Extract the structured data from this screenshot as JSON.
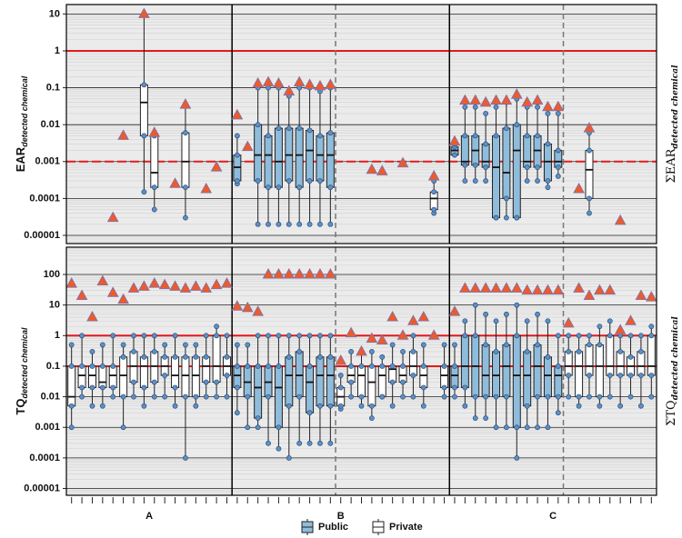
{
  "legend": [
    {
      "name": "Public",
      "color": "#8fbcdb"
    },
    {
      "name": "Private",
      "color": "#ffffff"
    }
  ],
  "x_groups": [
    {
      "name": "A",
      "public_sites": 0,
      "private_sites": 16
    },
    {
      "name": "B",
      "public_sites": 10,
      "private_sites": 11
    },
    {
      "name": "C",
      "public_sites": 11,
      "private_sites": 9
    }
  ],
  "chart_data": [
    {
      "type": "box",
      "log_scale": true,
      "y_label": "EAR",
      "y_label_sub": "detected chemical",
      "y2_label": "ΣEAR",
      "y2_label_sub": "detected chemical",
      "ylim": [
        6e-06,
        18
      ],
      "yticks": [
        1e-05,
        0.0001,
        0.001,
        0.01,
        0.1,
        1,
        10
      ],
      "thresholds": [
        {
          "value": 1,
          "style": "solid",
          "color": "#e41a1c"
        },
        {
          "value": 0.001,
          "style": "dashed",
          "color": "#e41a1c"
        }
      ],
      "boxes": [
        null,
        null,
        null,
        null,
        null,
        null,
        null,
        [
          0.00015,
          0.005,
          0.04,
          0.12,
          10
        ],
        [
          5e-05,
          0.0002,
          0.0005,
          0.005,
          0.006
        ],
        null,
        null,
        [
          3e-05,
          0.0002,
          0.001,
          0.006,
          0.035
        ],
        null,
        null,
        null,
        null,
        [
          0.00025,
          0.0003,
          0.0007,
          0.0015,
          0.005
        ],
        null,
        [
          2e-05,
          0.0003,
          0.0015,
          0.01,
          0.1
        ],
        [
          2e-05,
          0.0002,
          0.0015,
          0.005,
          0.1
        ],
        [
          2e-05,
          0.0002,
          0.001,
          0.008,
          0.1
        ],
        [
          2e-05,
          0.0003,
          0.0015,
          0.008,
          0.06
        ],
        [
          2e-05,
          0.0002,
          0.0015,
          0.008,
          0.1
        ],
        [
          2e-05,
          0.0003,
          0.002,
          0.007,
          0.1
        ],
        [
          2e-05,
          0.0003,
          0.0015,
          0.005,
          0.08
        ],
        [
          2e-05,
          0.0002,
          0.0015,
          0.006,
          0.1
        ],
        null,
        null,
        null,
        null,
        null,
        null,
        null,
        null,
        null,
        [
          4e-05,
          5e-05,
          0.0001,
          0.00015,
          0.0003
        ],
        null,
        [
          0.0015,
          0.0015,
          0.002,
          0.0025,
          0.003
        ],
        [
          0.0003,
          0.0008,
          0.001,
          0.005,
          0.03
        ],
        [
          0.0003,
          0.0008,
          0.002,
          0.005,
          0.03
        ],
        [
          0.0003,
          0.0007,
          0.001,
          0.003,
          0.02
        ],
        [
          3e-05,
          3e-05,
          0.0007,
          0.005,
          0.03
        ],
        [
          3e-05,
          0.0001,
          0.0005,
          0.008,
          0.04
        ],
        [
          3e-05,
          3e-05,
          0.002,
          0.01,
          0.05
        ],
        [
          0.0003,
          0.0007,
          0.001,
          0.005,
          0.03
        ],
        [
          0.0003,
          0.0007,
          0.002,
          0.005,
          0.03
        ],
        [
          0.0002,
          0.0003,
          0.001,
          0.003,
          0.02
        ],
        [
          0.0004,
          0.0007,
          0.001,
          0.002,
          0.02
        ],
        null,
        null,
        [
          4e-05,
          0.0001,
          0.0006,
          0.002,
          0.006
        ],
        null,
        null,
        null,
        null,
        null,
        null
      ],
      "max": [
        null,
        null,
        null,
        null,
        3e-05,
        0.005,
        null,
        10,
        0.006,
        null,
        0.00025,
        0.035,
        null,
        0.00018,
        0.0007,
        null,
        0.018,
        0.0025,
        0.13,
        0.14,
        0.13,
        0.08,
        0.14,
        0.12,
        0.11,
        0.12,
        null,
        null,
        null,
        0.0006,
        0.00055,
        null,
        0.0009,
        null,
        null,
        0.0004,
        null,
        0.0035,
        0.045,
        0.045,
        0.04,
        0.045,
        0.045,
        0.065,
        0.04,
        0.045,
        0.03,
        0.03,
        null,
        0.00018,
        0.008,
        null,
        null,
        2.5e-05,
        null,
        null,
        null
      ]
    },
    {
      "type": "box",
      "log_scale": true,
      "y_label": "TQ",
      "y_label_sub": "detected chemical",
      "y2_label": "ΣTQ",
      "y2_label_sub": "detected chemical",
      "ylim": [
        6e-06,
        780
      ],
      "yticks": [
        1e-05,
        0.0001,
        0.001,
        0.01,
        0.1,
        1,
        10,
        100
      ],
      "thresholds": [
        {
          "value": 1,
          "style": "solid",
          "color": "#e41a1c"
        },
        {
          "value": 0.1,
          "style": "solid",
          "color": "#e41a1c"
        }
      ],
      "boxes": [
        [
          0.001,
          0.005,
          0.01,
          0.1,
          0.5
        ],
        [
          0.01,
          0.02,
          0.05,
          0.1,
          1
        ],
        [
          0.005,
          0.02,
          0.05,
          0.1,
          0.3
        ],
        [
          0.005,
          0.02,
          0.03,
          0.1,
          0.5
        ],
        [
          0.01,
          0.02,
          0.05,
          0.1,
          1
        ],
        [
          0.001,
          0.01,
          0.05,
          0.2,
          0.5
        ],
        [
          0.01,
          0.03,
          0.1,
          0.3,
          1
        ],
        [
          0.005,
          0.02,
          0.1,
          0.2,
          1
        ],
        [
          0.01,
          0.03,
          0.1,
          0.3,
          1
        ],
        [
          0.01,
          0.05,
          0.1,
          0.2,
          0.5
        ],
        [
          0.005,
          0.02,
          0.05,
          0.2,
          1
        ],
        [
          0.0001,
          0.01,
          0.05,
          0.2,
          0.5
        ],
        [
          0.005,
          0.01,
          0.05,
          0.2,
          0.5
        ],
        [
          0.01,
          0.03,
          0.1,
          0.2,
          1
        ],
        [
          0.01,
          0.03,
          0.1,
          1,
          2
        ],
        [
          0.01,
          0.05,
          0.1,
          0.2,
          1
        ],
        [
          0.003,
          0.02,
          0.05,
          0.1,
          0.5
        ],
        [
          0.001,
          0.01,
          0.03,
          0.1,
          0.5
        ],
        [
          0.001,
          0.002,
          0.02,
          0.1,
          1
        ],
        [
          0.0003,
          0.01,
          0.03,
          0.1,
          1
        ],
        [
          0.0002,
          0.001,
          0.02,
          0.1,
          1
        ],
        [
          0.0001,
          0.005,
          0.05,
          0.2,
          1
        ],
        [
          0.0003,
          0.01,
          0.05,
          0.3,
          1
        ],
        [
          0.0003,
          0.003,
          0.03,
          0.1,
          1
        ],
        [
          0.0003,
          0.005,
          0.05,
          0.2,
          1
        ],
        [
          0.0003,
          0.005,
          0.05,
          0.2,
          1
        ],
        [
          0.004,
          0.005,
          0.01,
          0.02,
          0.05
        ],
        [
          0.01,
          0.03,
          0.05,
          0.1,
          0.3
        ],
        [
          0.005,
          0.01,
          0.05,
          0.1,
          0.3
        ],
        [
          0.002,
          0.005,
          0.03,
          0.1,
          0.3
        ],
        [
          0.01,
          0.01,
          0.05,
          0.1,
          0.2
        ],
        [
          0.005,
          0.03,
          0.08,
          0.1,
          0.5
        ],
        [
          0.01,
          0.03,
          0.05,
          0.1,
          0.3
        ],
        [
          0.01,
          0.05,
          0.1,
          0.3,
          1
        ],
        [
          0.005,
          0.02,
          0.05,
          0.1,
          0.5
        ],
        null,
        [
          0.01,
          0.02,
          0.05,
          0.1,
          0.5
        ],
        [
          0.01,
          0.02,
          0.05,
          0.1,
          0.5
        ],
        [
          0.005,
          0.02,
          0.1,
          1,
          3
        ],
        [
          0.002,
          0.01,
          0.1,
          1,
          10
        ],
        [
          0.002,
          0.01,
          0.05,
          0.5,
          5
        ],
        [
          0.001,
          0.01,
          0.05,
          0.3,
          3
        ],
        [
          0.001,
          0.01,
          0.1,
          0.5,
          5
        ],
        [
          0.0001,
          0.001,
          0.05,
          1,
          10
        ],
        [
          0.001,
          0.005,
          0.05,
          0.3,
          3
        ],
        [
          0.001,
          0.01,
          0.1,
          0.5,
          5
        ],
        [
          0.001,
          0.01,
          0.05,
          0.2,
          3
        ],
        [
          0.003,
          0.01,
          0.05,
          0.1,
          1
        ],
        [
          0.01,
          0.05,
          0.1,
          0.3,
          1
        ],
        [
          0.005,
          0.01,
          0.1,
          0.3,
          1
        ],
        [
          0.01,
          0.05,
          0.1,
          0.5,
          1
        ],
        [
          0.005,
          0.01,
          0.1,
          0.5,
          2
        ],
        [
          0.01,
          0.05,
          0.1,
          1,
          3
        ],
        [
          0.005,
          0.05,
          0.1,
          0.3,
          1
        ],
        [
          0.01,
          0.05,
          0.1,
          0.2,
          1
        ],
        [
          0.005,
          0.05,
          0.1,
          0.3,
          1
        ],
        [
          0.01,
          0.05,
          0.1,
          1,
          2
        ]
      ],
      "max": [
        50,
        20,
        4,
        60,
        25,
        15,
        35,
        40,
        50,
        45,
        40,
        35,
        40,
        35,
        45,
        50,
        9,
        8,
        6,
        100,
        100,
        100,
        100,
        100,
        100,
        100,
        0.15,
        1.2,
        0.3,
        0.8,
        0.7,
        4,
        1,
        3,
        4,
        1,
        null,
        6,
        35,
        35,
        35,
        35,
        35,
        35,
        30,
        30,
        30,
        30,
        2.5,
        35,
        20,
        30,
        30,
        1.5,
        3,
        20,
        18
      ]
    }
  ]
}
